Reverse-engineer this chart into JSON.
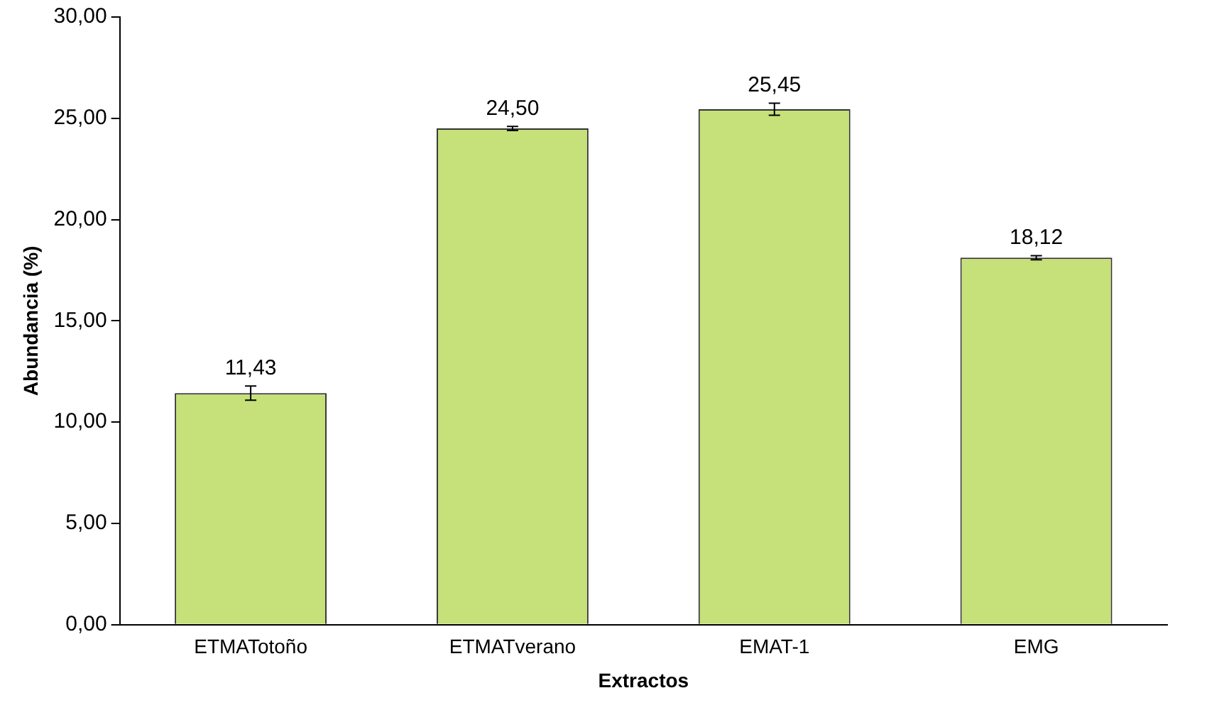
{
  "chart_data": {
    "type": "bar",
    "xlabel": "Extractos",
    "ylabel": "Abundancia (%)",
    "categories": [
      "ETMATotoño",
      "ETMATverano",
      "EMAT-1",
      "EMG"
    ],
    "values": [
      11.43,
      24.5,
      25.45,
      18.12
    ],
    "errors": [
      0.35,
      0.1,
      0.3,
      0.1
    ],
    "value_labels": [
      "11,43",
      "24,50",
      "25,45",
      "18,12"
    ],
    "color": "#c6e07a",
    "ylim": [
      0,
      30
    ],
    "yticks": [
      {
        "value": 0,
        "label": "0,00"
      },
      {
        "value": 5,
        "label": "5,00"
      },
      {
        "value": 10,
        "label": "10,00"
      },
      {
        "value": 15,
        "label": "15,00"
      },
      {
        "value": 20,
        "label": "20,00"
      },
      {
        "value": 25,
        "label": "25,00"
      },
      {
        "value": 30,
        "label": "30,00"
      }
    ],
    "grid": false,
    "legend": false
  }
}
